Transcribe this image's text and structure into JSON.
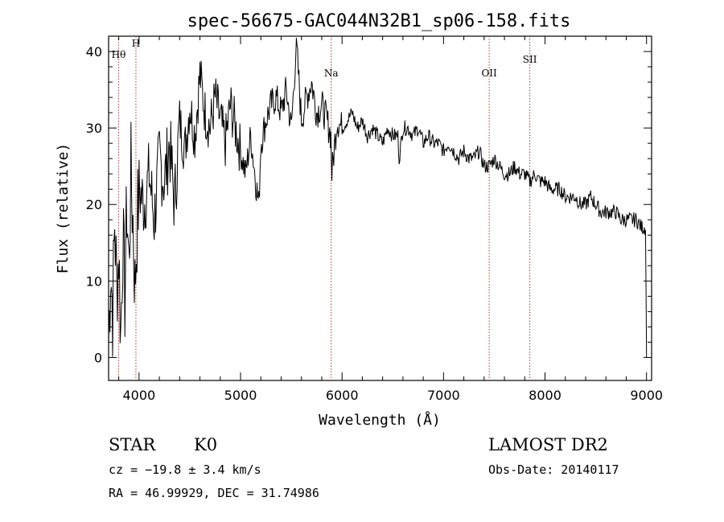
{
  "chart_data": {
    "type": "line",
    "title": "spec-56675-GAC044N32B1_sp06-158.fits",
    "xlabel": "Wavelength (Å)",
    "ylabel": "Flux (relative)",
    "xlim": [
      3700,
      9050
    ],
    "ylim": [
      -3,
      42
    ],
    "xticks": [
      4000,
      5000,
      6000,
      7000,
      8000,
      9000
    ],
    "yticks": [
      0,
      10,
      20,
      30,
      40
    ],
    "grid": false,
    "series": [
      {
        "x": [
          3700,
          3720,
          3740,
          3760,
          3780,
          3800,
          3820,
          3840,
          3860,
          3880,
          3900,
          3920,
          3940,
          3960,
          3980,
          4000,
          4050,
          4100,
          4150,
          4200,
          4250,
          4300,
          4350,
          4400,
          4450,
          4500,
          4550,
          4600,
          4650,
          4700,
          4750,
          4800,
          4850,
          4900,
          4950,
          5000,
          5050,
          5100,
          5150,
          5180,
          5200,
          5250,
          5300,
          5350,
          5400,
          5450,
          5500,
          5550,
          5600,
          5650,
          5700,
          5750,
          5800,
          5850,
          5890,
          5900,
          5950,
          6000,
          6050,
          6100,
          6150,
          6200,
          6250,
          6300,
          6350,
          6400,
          6450,
          6500,
          6550,
          6563,
          6600,
          6650,
          6700,
          6750,
          6800,
          6850,
          6900,
          6950,
          7000,
          7050,
          7100,
          7150,
          7200,
          7250,
          7300,
          7350,
          7400,
          7450,
          7500,
          7550,
          7600,
          7650,
          7700,
          7750,
          7800,
          7850,
          7900,
          7950,
          8000,
          8050,
          8100,
          8150,
          8200,
          8250,
          8300,
          8350,
          8400,
          8450,
          8500,
          8550,
          8600,
          8650,
          8700,
          8750,
          8800,
          8850,
          8900,
          8950,
          8990,
          9000
        ],
        "y": [
          2,
          12,
          6,
          18,
          9,
          14,
          3,
          16,
          8,
          20,
          12,
          24,
          18,
          9,
          17,
          22,
          20,
          24,
          18,
          26,
          23,
          28,
          20,
          31,
          27,
          33,
          29,
          37,
          32,
          30,
          34,
          31,
          28,
          33,
          30,
          27,
          24,
          29,
          23,
          20,
          28,
          31,
          33,
          34,
          32,
          35,
          30,
          41,
          31,
          34,
          36,
          32,
          33,
          31,
          29,
          24,
          31,
          30,
          31,
          32,
          30,
          31,
          29,
          30,
          29,
          28,
          30,
          29,
          29,
          26,
          30,
          30,
          29,
          30,
          28,
          29,
          28,
          28,
          27,
          28,
          27,
          26,
          27,
          26,
          26,
          27,
          25,
          25,
          26,
          25,
          24,
          24,
          25,
          24,
          24,
          23,
          24,
          23,
          23,
          22,
          22,
          22,
          21,
          21,
          21,
          20,
          20,
          21,
          20,
          19,
          19,
          19,
          19,
          18,
          18,
          18,
          18,
          17,
          17,
          0
        ]
      }
    ],
    "line_markers": [
      {
        "label": "Hθ",
        "x": 3798
      },
      {
        "label": "H",
        "x": 3969
      },
      {
        "label": "Na",
        "x": 5893
      },
      {
        "label": "OII",
        "x": 7450
      },
      {
        "label": "SII",
        "x": 7850
      }
    ],
    "line_marker_color": "#b03030",
    "line_color": "#000000"
  },
  "info": {
    "class": "STAR",
    "subclass": "K0",
    "survey": "LAMOST DR2",
    "cz": "cz = −19.8 ± 3.4 km/s",
    "obs_date": "Obs-Date: 20140117",
    "coords": "RA =  46.99929, DEC =  31.74986"
  }
}
